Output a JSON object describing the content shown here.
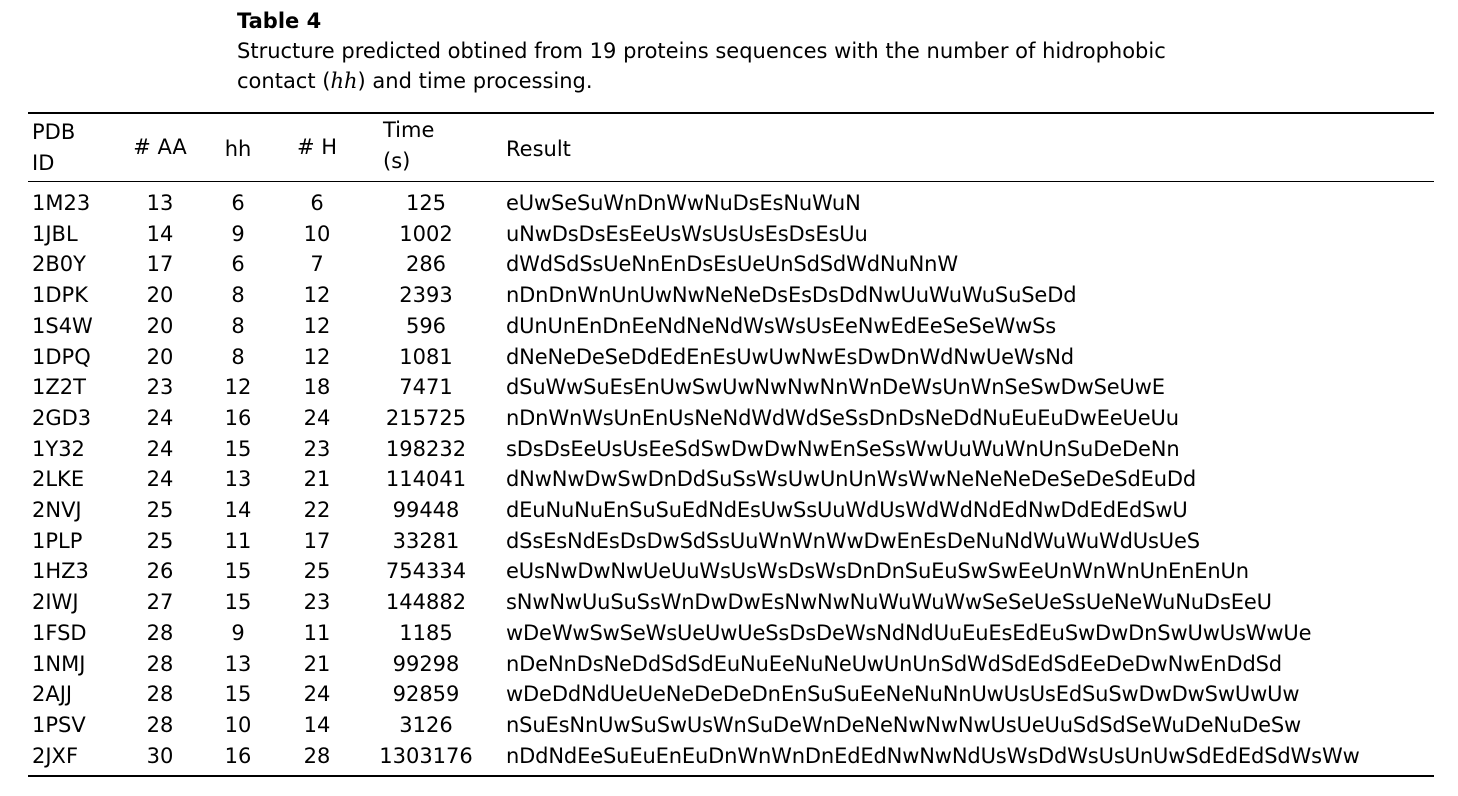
{
  "caption": {
    "label": "Table 4",
    "text_before": "Structure predicted obtined from 19 proteins sequences with the number of hidrophobic contact (",
    "text_italic": "hh",
    "text_after": ") and time processing."
  },
  "table": {
    "headers": {
      "pdb_line1": "PDB",
      "pdb_line2": "ID",
      "aa": "# AA",
      "hh": "hh",
      "h": "# H",
      "time_line1": "Time",
      "time_line2": "(s)",
      "result": "Result"
    },
    "rows": [
      {
        "pdb": "1M23",
        "aa": "13",
        "hh": "6",
        "h": "6",
        "time": "125",
        "result": "eUwSeSuWnDnWwNuDsEsNuWuN"
      },
      {
        "pdb": "1JBL",
        "aa": "14",
        "hh": "9",
        "h": "10",
        "time": "1002",
        "result": "uNwDsDsEsEeUsWsUsUsEsDsEsUu"
      },
      {
        "pdb": "2B0Y",
        "aa": "17",
        "hh": "6",
        "h": "7",
        "time": "286",
        "result": "dWdSdSsUeNnEnDsEsUeUnSdSdWdNuNnW"
      },
      {
        "pdb": "1DPK",
        "aa": "20",
        "hh": "8",
        "h": "12",
        "time": "2393",
        "result": "nDnDnWnUnUwNwNeNeDsEsDsDdNwUuWuWuSuSeDd"
      },
      {
        "pdb": "1S4W",
        "aa": "20",
        "hh": "8",
        "h": "12",
        "time": "596",
        "result": "dUnUnEnDnEeNdNeNdWsWsUsEeNwEdEeSeSeWwSs"
      },
      {
        "pdb": "1DPQ",
        "aa": "20",
        "hh": "8",
        "h": "12",
        "time": "1081",
        "result": "dNeNeDeSeDdEdEnEsUwUwNwEsDwDnWdNwUeWsNd"
      },
      {
        "pdb": "1Z2T",
        "aa": "23",
        "hh": "12",
        "h": "18",
        "time": "7471",
        "result": "dSuWwSuEsEnUwSwUwNwNwNnWnDeWsUnWnSeSwDwSeUwE"
      },
      {
        "pdb": "2GD3",
        "aa": "24",
        "hh": "16",
        "h": "24",
        "time": "215725",
        "result": "nDnWnWsUnEnUsNeNdWdWdSeSsDnDsNeDdNuEuEuDwEeUeUu"
      },
      {
        "pdb": "1Y32",
        "aa": "24",
        "hh": "15",
        "h": "23",
        "time": "198232",
        "result": "sDsDsEeUsUsEeSdSwDwDwNwEnSeSsWwUuWuWnUnSuDeDeNn"
      },
      {
        "pdb": "2LKE",
        "aa": "24",
        "hh": "13",
        "h": "21",
        "time": "114041",
        "result": "dNwNwDwSwDnDdSuSsWsUwUnUnWsWwNeNeNeDeSeDeSdEuDd"
      },
      {
        "pdb": "2NVJ",
        "aa": "25",
        "hh": "14",
        "h": "22",
        "time": "99448",
        "result": "dEuNuNuEnSuSuEdNdEsUwSsUuWdUsWdWdNdEdNwDdEdEdSwU"
      },
      {
        "pdb": "1PLP",
        "aa": "25",
        "hh": "11",
        "h": "17",
        "time": "33281",
        "result": "dSsEsNdEsDsDwSdSsUuWnWnWwDwEnEsDeNuNdWuWuWdUsUeS"
      },
      {
        "pdb": "1HZ3",
        "aa": "26",
        "hh": "15",
        "h": "25",
        "time": "754334",
        "result": "eUsNwDwNwUeUuWsUsWsDsWsDnDnSuEuSwSwEeUnWnWnUnEnEnUn"
      },
      {
        "pdb": "2IWJ",
        "aa": "27",
        "hh": "15",
        "h": "23",
        "time": "144882",
        "result": "sNwNwUuSuSsWnDwDwEsNwNwNuWuWuWwSeSeUeSsUeNeWuNuDsEeU"
      },
      {
        "pdb": "1FSD",
        "aa": "28",
        "hh": "9",
        "h": "11",
        "time": "1185",
        "result": "wDeWwSwSeWsUeUwUeSsDsDeWsNdNdUuEuEsEdEuSwDwDnSwUwUsWwUe"
      },
      {
        "pdb": "1NMJ",
        "aa": "28",
        "hh": "13",
        "h": "21",
        "time": "99298",
        "result": "nDeNnDsNeDdSdSdEuNuEeNuNeUwUnUnSdWdSdEdSdEeDeDwNwEnDdSd"
      },
      {
        "pdb": "2AJJ",
        "aa": "28",
        "hh": "15",
        "h": "24",
        "time": "92859",
        "result": "wDeDdNdUeUeNeDeDeDnEnSuSuEeNeNuNnUwUsUsEdSuSwDwDwSwUwUw"
      },
      {
        "pdb": "1PSV",
        "aa": "28",
        "hh": "10",
        "h": "14",
        "time": "3126",
        "result": "nSuEsNnUwSuSwUsWnSuDeWnDeNeNwNwNwUsUeUuSdSdSeWuDeNuDeSw"
      },
      {
        "pdb": "2JXF",
        "aa": "30",
        "hh": "16",
        "h": "28",
        "time": "1303176",
        "result": "nDdNdEeSuEuEnEuDnWnWnDnEdEdNwNwNdUsWsDdWsUsUnUwSdEdEdSdWsWw"
      }
    ]
  }
}
